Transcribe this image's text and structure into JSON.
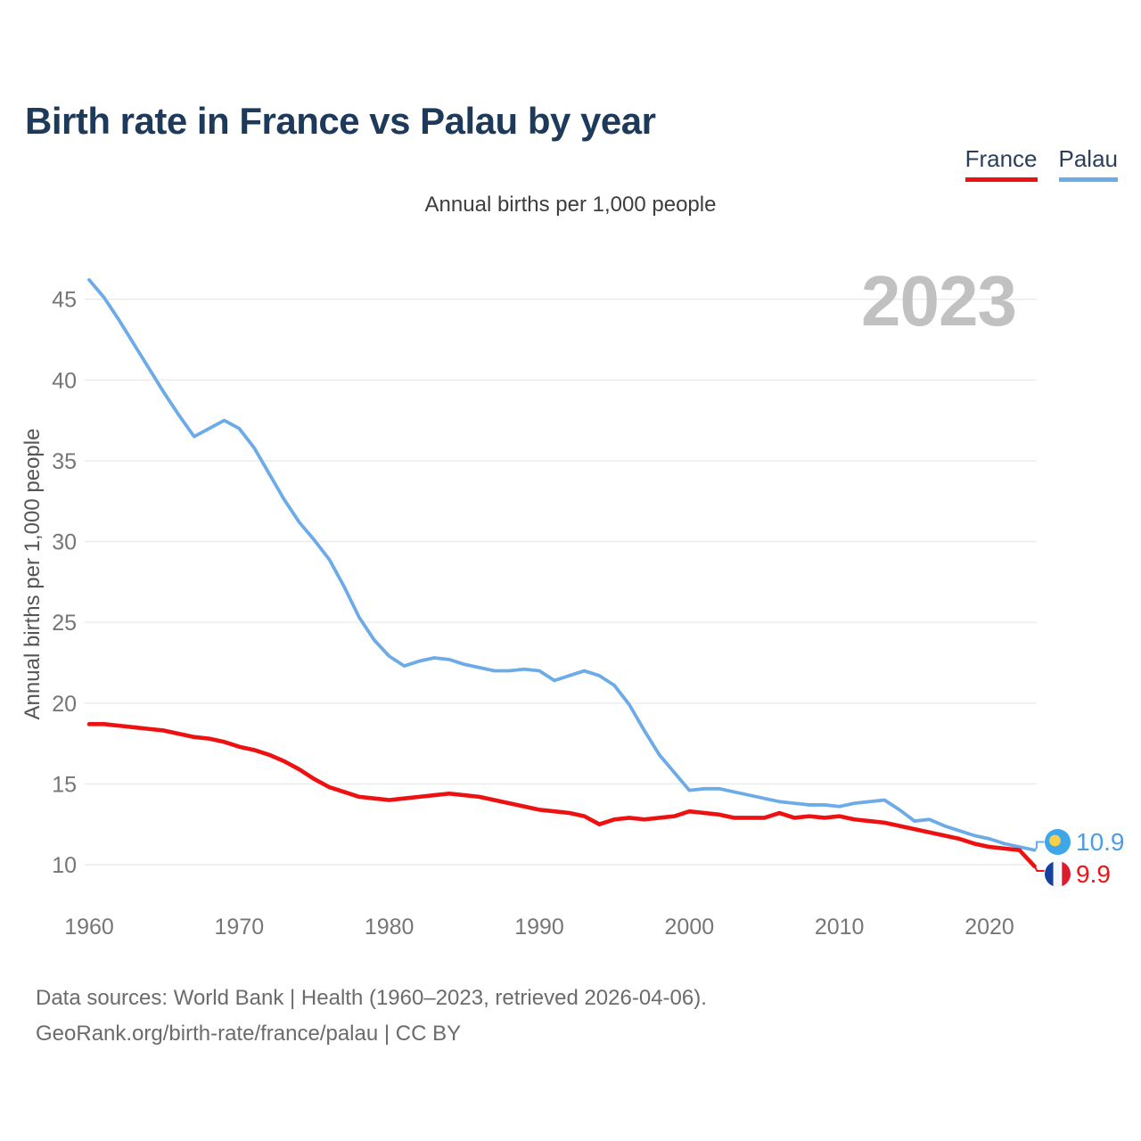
{
  "header": {
    "title": "Birth rate in France vs Palau by year"
  },
  "legend": [
    {
      "label": "France",
      "color": "#ee1111"
    },
    {
      "label": "Palau",
      "color": "#6cabe8"
    }
  ],
  "subtitle": "Annual births per 1,000 people",
  "watermark": "2023",
  "y_axis": {
    "label": "Annual births per 1,000 people",
    "ticks": [
      45,
      40,
      35,
      30,
      25,
      20,
      15,
      10
    ]
  },
  "x_axis": {
    "ticks": [
      1960,
      1970,
      1980,
      1990,
      2000,
      2010,
      2020
    ]
  },
  "end_labels": [
    {
      "series": "Palau",
      "value": "10.9",
      "color": "#4b9de4",
      "flag": "palau-flag"
    },
    {
      "series": "France",
      "value": "9.9",
      "color": "#ed1417",
      "flag": "france-flag"
    }
  ],
  "flag_colors": {
    "palau": {
      "field": "#3fa6e8",
      "disc": "#f9d04a"
    },
    "france": {
      "blue": "#17419e",
      "white": "#f7f7f9",
      "red": "#dd1b2d"
    }
  },
  "footer": {
    "line1": "Data sources: World Bank | Health (1960–2023, retrieved 2026-04-06).",
    "line2": "GeoRank.org/birth-rate/france/palau | CC BY"
  },
  "chart_data": {
    "type": "line",
    "title": "Birth rate in France vs Palau by year",
    "ylabel": "Annual births per 1,000 people",
    "xlim": [
      1960,
      2023
    ],
    "ylim": [
      9,
      47
    ],
    "grid": true,
    "legend_position": "top-right",
    "x": [
      1960,
      1961,
      1962,
      1963,
      1964,
      1965,
      1966,
      1967,
      1968,
      1969,
      1970,
      1971,
      1972,
      1973,
      1974,
      1975,
      1976,
      1977,
      1978,
      1979,
      1980,
      1981,
      1982,
      1983,
      1984,
      1985,
      1986,
      1987,
      1988,
      1989,
      1990,
      1991,
      1992,
      1993,
      1994,
      1995,
      1996,
      1997,
      1998,
      1999,
      2000,
      2001,
      2002,
      2003,
      2004,
      2005,
      2006,
      2007,
      2008,
      2009,
      2010,
      2011,
      2012,
      2013,
      2014,
      2015,
      2016,
      2017,
      2018,
      2019,
      2020,
      2021,
      2022,
      2023
    ],
    "series": [
      {
        "name": "France",
        "color": "#ee1111",
        "values": [
          18.7,
          18.7,
          18.6,
          18.5,
          18.4,
          18.3,
          18.1,
          17.9,
          17.8,
          17.6,
          17.3,
          17.1,
          16.8,
          16.4,
          15.9,
          15.3,
          14.8,
          14.5,
          14.2,
          14.1,
          14.0,
          14.1,
          14.2,
          14.3,
          14.4,
          14.3,
          14.2,
          14.0,
          13.8,
          13.6,
          13.4,
          13.3,
          13.2,
          13.0,
          12.5,
          12.8,
          12.9,
          12.8,
          12.9,
          13.0,
          13.3,
          13.2,
          13.1,
          12.9,
          12.9,
          12.9,
          13.2,
          12.9,
          13.0,
          12.9,
          13.0,
          12.8,
          12.7,
          12.6,
          12.4,
          12.2,
          12.0,
          11.8,
          11.6,
          11.3,
          11.1,
          11.0,
          10.9,
          9.9
        ]
      },
      {
        "name": "Palau",
        "color": "#6cabe8",
        "values": [
          46.2,
          45.1,
          43.7,
          42.2,
          40.7,
          39.2,
          37.8,
          36.5,
          37.0,
          37.5,
          37.0,
          35.8,
          34.2,
          32.6,
          31.2,
          30.1,
          28.9,
          27.2,
          25.3,
          23.9,
          22.9,
          22.3,
          22.6,
          22.8,
          22.7,
          22.4,
          22.2,
          22.0,
          22.0,
          22.1,
          22.0,
          21.4,
          21.7,
          22.0,
          21.7,
          21.1,
          19.9,
          18.3,
          16.8,
          15.7,
          14.6,
          14.7,
          14.7,
          14.5,
          14.3,
          14.1,
          13.9,
          13.8,
          13.7,
          13.7,
          13.6,
          13.8,
          13.9,
          14.0,
          13.4,
          12.7,
          12.8,
          12.4,
          12.1,
          11.8,
          11.6,
          11.3,
          11.1,
          10.9
        ]
      }
    ]
  }
}
